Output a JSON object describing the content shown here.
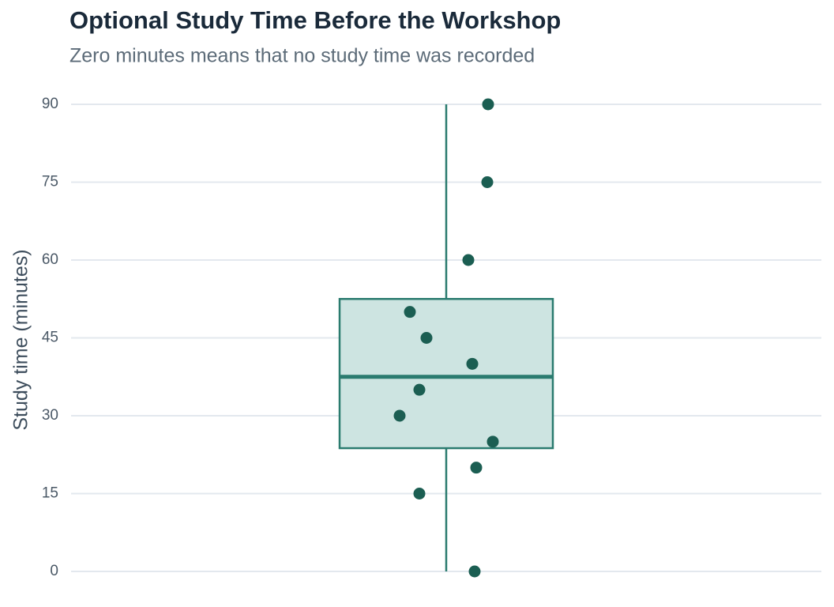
{
  "chart_data": {
    "type": "box",
    "title": "Optional Study Time Before the Workshop",
    "subtitle": "Zero minutes means that no study time was recorded",
    "y_label": "Study time (minutes)",
    "values": [
      90,
      75,
      60,
      50,
      45,
      40,
      35,
      30,
      25,
      20,
      15,
      0
    ],
    "box": {
      "whisker_low": 0,
      "q1": 23.75,
      "median": 37.5,
      "q3": 52.5,
      "whisker_high": 90
    },
    "ylim": [
      0,
      90
    ],
    "yticks": [
      0,
      15,
      30,
      45,
      60,
      75,
      90
    ],
    "grid": true,
    "point_color": "#1b5e52",
    "box_color": "#2a7b6f",
    "box_fill": "#cde4e1"
  }
}
